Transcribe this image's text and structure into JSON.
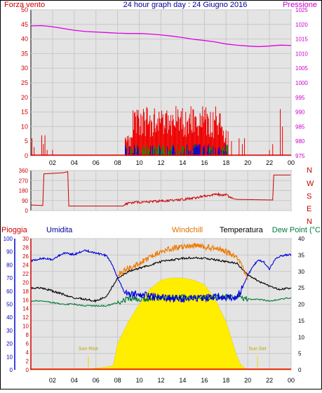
{
  "chart_data": [
    {
      "type": "line",
      "title": "24 hour graph day : 24 Giugno 2016",
      "left_axis_label": "Forza vento",
      "right_axis_label": "Pressione",
      "left_ylim": [
        0,
        50
      ],
      "left_ticks": [
        "0",
        "5",
        "10",
        "15",
        "20",
        "25",
        "30",
        "35",
        "40",
        "45",
        "50"
      ],
      "right_ylim": [
        975,
        1025
      ],
      "right_ticks": [
        "975",
        "980",
        "985",
        "990",
        "995",
        "1000",
        "1005",
        "1010",
        "1015",
        "1020",
        "1025"
      ],
      "x_ticks": [
        "02",
        "04",
        "06",
        "08",
        "10",
        "12",
        "14",
        "16",
        "18",
        "20",
        "22",
        "00"
      ],
      "x_range_hours": [
        0,
        24
      ],
      "grid": true,
      "series": [
        {
          "name": "Pressione",
          "axis": "right",
          "color": "#e000e0",
          "points": [
            [
              0,
              1019.5
            ],
            [
              1,
              1019.6
            ],
            [
              2,
              1019.2
            ],
            [
              3,
              1018.6
            ],
            [
              4,
              1018.0
            ],
            [
              5,
              1017.6
            ],
            [
              6,
              1017.4
            ],
            [
              7,
              1017.2
            ],
            [
              8,
              1017.0
            ],
            [
              9,
              1016.9
            ],
            [
              10,
              1016.9
            ],
            [
              11,
              1016.7
            ],
            [
              12,
              1016.4
            ],
            [
              13,
              1016.0
            ],
            [
              14,
              1015.5
            ],
            [
              15,
              1014.9
            ],
            [
              16,
              1014.5
            ],
            [
              17,
              1014.0
            ],
            [
              18,
              1013.3
            ],
            [
              19,
              1012.9
            ],
            [
              20,
              1012.6
            ],
            [
              21,
              1012.4
            ],
            [
              22,
              1012.6
            ],
            [
              23,
              1012.9
            ],
            [
              24,
              1012.8
            ]
          ]
        }
      ]
    },
    {
      "type": "line",
      "left_ylim": [
        0,
        360
      ],
      "left_ticks": [
        "0",
        "90",
        "180",
        "270",
        "360"
      ],
      "right_labels": [
        "N",
        "W",
        "S",
        "E",
        "N"
      ],
      "x_range_hours": [
        0,
        24
      ],
      "series": [
        {
          "name": "",
          "color": "#cc0000",
          "points": [
            [
              0,
              50
            ],
            [
              1.1,
              45
            ],
            [
              1.2,
              330
            ],
            [
              3,
              340
            ],
            [
              3.4,
              350
            ],
            [
              3.5,
              40
            ],
            [
              8.5,
              40
            ],
            [
              9,
              70
            ],
            [
              11,
              80
            ],
            [
              13,
              90
            ],
            [
              15,
              110
            ],
            [
              16,
              130
            ],
            [
              17,
              145
            ],
            [
              18,
              140
            ],
            [
              18.5,
              110
            ],
            [
              19,
              100
            ],
            [
              22.3,
              95
            ],
            [
              22.4,
              320
            ],
            [
              24,
              320
            ]
          ]
        }
      ]
    },
    {
      "type": "area",
      "left_axis_labels": [
        "Pioggia",
        "Umidita"
      ],
      "mid_labels": [
        "Windchill",
        "Temperatura"
      ],
      "right_axis_label": "Dew Point (°C",
      "rain_ticks": [
        "0",
        "2",
        "4",
        "6",
        "8",
        "10",
        "12",
        "14",
        "16",
        "18",
        "20",
        "22",
        "24",
        "26",
        "28",
        "30"
      ],
      "humidity_ticks": [
        "0",
        "10",
        "20",
        "30",
        "40",
        "50",
        "60",
        "70",
        "80",
        "90",
        "100"
      ],
      "temp_ticks": [
        "0",
        "5",
        "10",
        "15",
        "20",
        "25",
        "30",
        "35",
        "40"
      ],
      "x_ticks": [
        "02",
        "04",
        "06",
        "08",
        "10",
        "12",
        "14",
        "16",
        "18",
        "20",
        "22",
        "00"
      ],
      "annotations": [
        "Sun Rise",
        "Sun Set"
      ],
      "grid": true,
      "series": [
        {
          "name": "Umidita",
          "axis": "humidity",
          "color": "#0000dd",
          "points": [
            [
              0,
              83
            ],
            [
              1,
              85
            ],
            [
              2,
              84
            ],
            [
              3,
              89
            ],
            [
              4,
              88
            ],
            [
              5,
              91
            ],
            [
              6,
              89
            ],
            [
              7,
              87
            ],
            [
              7.5,
              80
            ],
            [
              8,
              70
            ],
            [
              8.5,
              62
            ],
            [
              9,
              58
            ],
            [
              10,
              57
            ],
            [
              12,
              55
            ],
            [
              14,
              54
            ],
            [
              16,
              55
            ],
            [
              17,
              56
            ],
            [
              18,
              55
            ],
            [
              19,
              55
            ],
            [
              19.5,
              62
            ],
            [
              20,
              72
            ],
            [
              20.5,
              79
            ],
            [
              21,
              84
            ],
            [
              21.5,
              82
            ],
            [
              22,
              77
            ],
            [
              22.5,
              84
            ],
            [
              23,
              87
            ],
            [
              24,
              88
            ]
          ]
        },
        {
          "name": "Temperatura",
          "axis": "temp",
          "color": "#000000",
          "points": [
            [
              0,
              25
            ],
            [
              1,
              25
            ],
            [
              2,
              24
            ],
            [
              3,
              23
            ],
            [
              4,
              22
            ],
            [
              5,
              21.5
            ],
            [
              6,
              21
            ],
            [
              7,
              22.5
            ],
            [
              8,
              28
            ],
            [
              9,
              30
            ],
            [
              10,
              31
            ],
            [
              11,
              32
            ],
            [
              12,
              33
            ],
            [
              13,
              33.5
            ],
            [
              14,
              34
            ],
            [
              15,
              34.2
            ],
            [
              16,
              34
            ],
            [
              17,
              33.5
            ],
            [
              18,
              33
            ],
            [
              19,
              32.5
            ],
            [
              20,
              29
            ],
            [
              21,
              27
            ],
            [
              22,
              25.5
            ],
            [
              23,
              24.5
            ],
            [
              24,
              25
            ]
          ]
        },
        {
          "name": "Windchill",
          "axis": "temp",
          "color": "#f07800",
          "points": [
            [
              8,
              29
            ],
            [
              9,
              31
            ],
            [
              10,
              32.5
            ],
            [
              11,
              34.5
            ],
            [
              12,
              36
            ],
            [
              13,
              37
            ],
            [
              14,
              37.5
            ],
            [
              15,
              38
            ],
            [
              16,
              37.5
            ],
            [
              17,
              37
            ],
            [
              18,
              36
            ],
            [
              19,
              34.5
            ],
            [
              20,
              28
            ]
          ]
        },
        {
          "name": "Dew Point",
          "axis": "temp",
          "color": "#007a3a",
          "points": [
            [
              0,
              21
            ],
            [
              1,
              21
            ],
            [
              2,
              20.5
            ],
            [
              3,
              20
            ],
            [
              4,
              20
            ],
            [
              5,
              19.5
            ],
            [
              6,
              19.5
            ],
            [
              7,
              19.5
            ],
            [
              8,
              20.5
            ],
            [
              9,
              21.8
            ],
            [
              10,
              21.5
            ],
            [
              11,
              21.5
            ],
            [
              12,
              22
            ],
            [
              13,
              22
            ],
            [
              14,
              22.2
            ],
            [
              15,
              22
            ],
            [
              16,
              22
            ],
            [
              17,
              22.2
            ],
            [
              18,
              22.2
            ],
            [
              19,
              22.5
            ],
            [
              20,
              21.5
            ],
            [
              21,
              21.5
            ],
            [
              22,
              21
            ],
            [
              23,
              21.5
            ],
            [
              24,
              22
            ]
          ]
        },
        {
          "name": "Solar",
          "axis": "rain",
          "color": "#ffee00",
          "points": [
            [
              0,
              0
            ],
            [
              5.3,
              0
            ],
            [
              6,
              0.4
            ],
            [
              7,
              0.6
            ],
            [
              7.6,
              1.0
            ],
            [
              8,
              6
            ],
            [
              9,
              11
            ],
            [
              10,
              15
            ],
            [
              11,
              18.5
            ],
            [
              12,
              20.5
            ],
            [
              13,
              21
            ],
            [
              14,
              21
            ],
            [
              15,
              20.5
            ],
            [
              16,
              19.5
            ],
            [
              17,
              16
            ],
            [
              18,
              11
            ],
            [
              19,
              3
            ],
            [
              19.4,
              1
            ],
            [
              20,
              0
            ],
            [
              24,
              0
            ]
          ]
        }
      ]
    }
  ]
}
